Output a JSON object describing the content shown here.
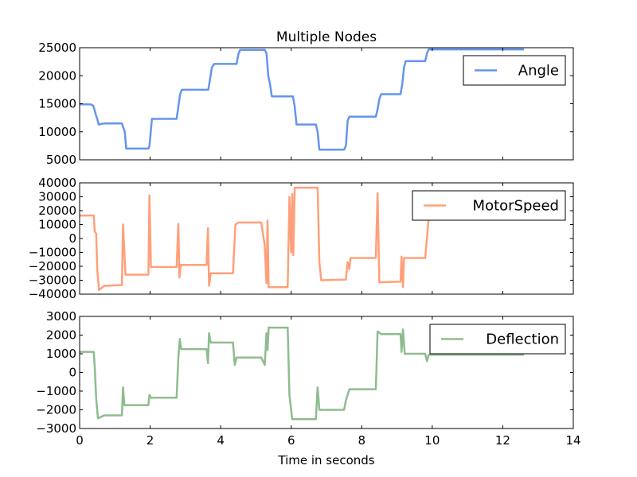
{
  "chart_data": [
    {
      "type": "line",
      "title": "Multiple Nodes",
      "xlabel": "",
      "ylabel": "",
      "xlim": [
        0,
        14
      ],
      "ylim": [
        5000,
        25000
      ],
      "xticks": [
        0,
        2,
        4,
        6,
        8,
        10,
        12,
        14
      ],
      "yticks": [
        5000,
        10000,
        15000,
        20000,
        25000
      ],
      "yticklabels": [
        "5000",
        "10000",
        "15000",
        "20000",
        "25000"
      ],
      "show_xticklabels": false,
      "grid": false,
      "legend": {
        "placement": "top-right"
      },
      "series": [
        {
          "name": "Angle",
          "color": "#6495ED",
          "points": [
            [
              0,
              14900
            ],
            [
              0.3,
              14900
            ],
            [
              0.38,
              14700
            ],
            [
              0.42,
              14000
            ],
            [
              0.46,
              13000
            ],
            [
              0.5,
              12300
            ],
            [
              0.54,
              11300
            ],
            [
              0.7,
              11500
            ],
            [
              1.2,
              11500
            ],
            [
              1.28,
              10000
            ],
            [
              1.32,
              7000
            ],
            [
              1.95,
              7000
            ],
            [
              1.98,
              7500
            ],
            [
              2.05,
              12300
            ],
            [
              2.75,
              12300
            ],
            [
              2.8,
              14500
            ],
            [
              2.85,
              16700
            ],
            [
              2.9,
              17500
            ],
            [
              3.65,
              17500
            ],
            [
              3.7,
              19500
            ],
            [
              3.75,
              21500
            ],
            [
              3.82,
              22100
            ],
            [
              4.45,
              22100
            ],
            [
              4.5,
              23800
            ],
            [
              4.55,
              24600
            ],
            [
              5.25,
              24600
            ],
            [
              5.3,
              24000
            ],
            [
              5.35,
              20000
            ],
            [
              5.4,
              18500
            ],
            [
              5.45,
              16300
            ],
            [
              6.05,
              16300
            ],
            [
              6.1,
              14500
            ],
            [
              6.15,
              11300
            ],
            [
              6.7,
              11300
            ],
            [
              6.75,
              10000
            ],
            [
              6.8,
              6800
            ],
            [
              7.5,
              6800
            ],
            [
              7.55,
              7500
            ],
            [
              7.6,
              12000
            ],
            [
              7.65,
              12700
            ],
            [
              8.4,
              12700
            ],
            [
              8.45,
              14000
            ],
            [
              8.5,
              15800
            ],
            [
              8.55,
              16700
            ],
            [
              9.1,
              16700
            ],
            [
              9.15,
              18500
            ],
            [
              9.2,
              21500
            ],
            [
              9.25,
              22600
            ],
            [
              9.8,
              22600
            ],
            [
              9.85,
              24000
            ],
            [
              9.9,
              24700
            ],
            [
              12.6,
              24700
            ]
          ]
        }
      ]
    },
    {
      "type": "line",
      "title": "",
      "xlabel": "",
      "ylabel": "",
      "xlim": [
        0,
        14
      ],
      "ylim": [
        -40000,
        40000
      ],
      "xticks": [
        0,
        2,
        4,
        6,
        8,
        10,
        12,
        14
      ],
      "yticks": [
        -40000,
        -30000,
        -20000,
        -10000,
        0,
        10000,
        20000,
        30000,
        40000
      ],
      "yticklabels": [
        "−40000",
        "−30000",
        "−20000",
        "−10000",
        "0",
        "10000",
        "20000",
        "30000",
        "40000"
      ],
      "show_xticklabels": false,
      "grid": false,
      "legend": {
        "placement": "top-right"
      },
      "series": [
        {
          "name": "MotorSpeed",
          "color": "#FFA07A",
          "points": [
            [
              0,
              16500
            ],
            [
              0.4,
              16500
            ],
            [
              0.43,
              5000
            ],
            [
              0.47,
              3500
            ],
            [
              0.5,
              -22000
            ],
            [
              0.55,
              -37000
            ],
            [
              0.7,
              -34000
            ],
            [
              1.2,
              -33500
            ],
            [
              1.23,
              10000
            ],
            [
              1.26,
              -5000
            ],
            [
              1.3,
              -26000
            ],
            [
              1.95,
              -26000
            ],
            [
              1.98,
              31000
            ],
            [
              2.02,
              -20500
            ],
            [
              2.75,
              -20500
            ],
            [
              2.8,
              10500
            ],
            [
              2.83,
              -28000
            ],
            [
              2.87,
              -19000
            ],
            [
              3.6,
              -19000
            ],
            [
              3.64,
              7500
            ],
            [
              3.67,
              -34000
            ],
            [
              3.72,
              -25000
            ],
            [
              4.35,
              -25000
            ],
            [
              4.42,
              10000
            ],
            [
              4.5,
              11500
            ],
            [
              5.15,
              11500
            ],
            [
              5.25,
              -5000
            ],
            [
              5.3,
              -32000
            ],
            [
              5.33,
              13000
            ],
            [
              5.36,
              -35000
            ],
            [
              5.9,
              -35000
            ],
            [
              5.95,
              30000
            ],
            [
              6.0,
              -10000
            ],
            [
              6.03,
              32000
            ],
            [
              6.06,
              -12000
            ],
            [
              6.1,
              36500
            ],
            [
              6.75,
              36500
            ],
            [
              6.8,
              -17000
            ],
            [
              6.85,
              -30000
            ],
            [
              7.55,
              -29500
            ],
            [
              7.6,
              -17000
            ],
            [
              7.65,
              -22000
            ],
            [
              7.68,
              -14000
            ],
            [
              8.4,
              -14000
            ],
            [
              8.45,
              32500
            ],
            [
              8.5,
              -31500
            ],
            [
              9.1,
              -31000
            ],
            [
              9.13,
              -13000
            ],
            [
              9.17,
              -35000
            ],
            [
              9.2,
              -14000
            ],
            [
              9.8,
              -14000
            ],
            [
              9.9,
              14500
            ],
            [
              12.6,
              14500
            ]
          ]
        }
      ]
    },
    {
      "type": "line",
      "title": "",
      "xlabel": "Time in seconds",
      "ylabel": "",
      "xlim": [
        0,
        14
      ],
      "ylim": [
        -3000,
        3000
      ],
      "xticks": [
        0,
        2,
        4,
        6,
        8,
        10,
        12,
        14
      ],
      "xticklabels": [
        "0",
        "2",
        "4",
        "6",
        "8",
        "10",
        "12",
        "14"
      ],
      "yticks": [
        -3000,
        -2000,
        -1000,
        0,
        1000,
        2000,
        3000
      ],
      "yticklabels": [
        "−3000",
        "−2000",
        "−1000",
        "0",
        "1000",
        "2000",
        "3000"
      ],
      "show_xticklabels": true,
      "grid": false,
      "legend": {
        "placement": "top-right"
      },
      "series": [
        {
          "name": "Deflection",
          "color": "#8FBC8F",
          "points": [
            [
              0,
              1100
            ],
            [
              0.4,
              1100
            ],
            [
              0.43,
              300
            ],
            [
              0.47,
              -1400
            ],
            [
              0.52,
              -2450
            ],
            [
              0.7,
              -2300
            ],
            [
              1.2,
              -2300
            ],
            [
              1.23,
              -800
            ],
            [
              1.27,
              -1750
            ],
            [
              1.95,
              -1750
            ],
            [
              1.98,
              -1200
            ],
            [
              2.02,
              -1350
            ],
            [
              2.75,
              -1350
            ],
            [
              2.8,
              800
            ],
            [
              2.84,
              1800
            ],
            [
              2.88,
              1250
            ],
            [
              3.6,
              1250
            ],
            [
              3.64,
              500
            ],
            [
              3.67,
              2100
            ],
            [
              3.72,
              1600
            ],
            [
              4.35,
              1600
            ],
            [
              4.4,
              400
            ],
            [
              4.45,
              800
            ],
            [
              5.15,
              800
            ],
            [
              5.25,
              400
            ],
            [
              5.3,
              2100
            ],
            [
              5.33,
              1200
            ],
            [
              5.36,
              2400
            ],
            [
              5.9,
              2400
            ],
            [
              5.95,
              -1200
            ],
            [
              6.03,
              -2500
            ],
            [
              6.7,
              -2500
            ],
            [
              6.75,
              -800
            ],
            [
              6.8,
              -2000
            ],
            [
              7.5,
              -2000
            ],
            [
              7.55,
              -1500
            ],
            [
              7.6,
              -1200
            ],
            [
              7.65,
              -900
            ],
            [
              8.4,
              -900
            ],
            [
              8.45,
              2200
            ],
            [
              8.55,
              2050
            ],
            [
              9.1,
              2050
            ],
            [
              9.13,
              1100
            ],
            [
              9.17,
              2300
            ],
            [
              9.22,
              1000
            ],
            [
              9.8,
              1000
            ],
            [
              9.85,
              600
            ],
            [
              9.9,
              950
            ],
            [
              12.6,
              950
            ]
          ]
        }
      ]
    }
  ]
}
